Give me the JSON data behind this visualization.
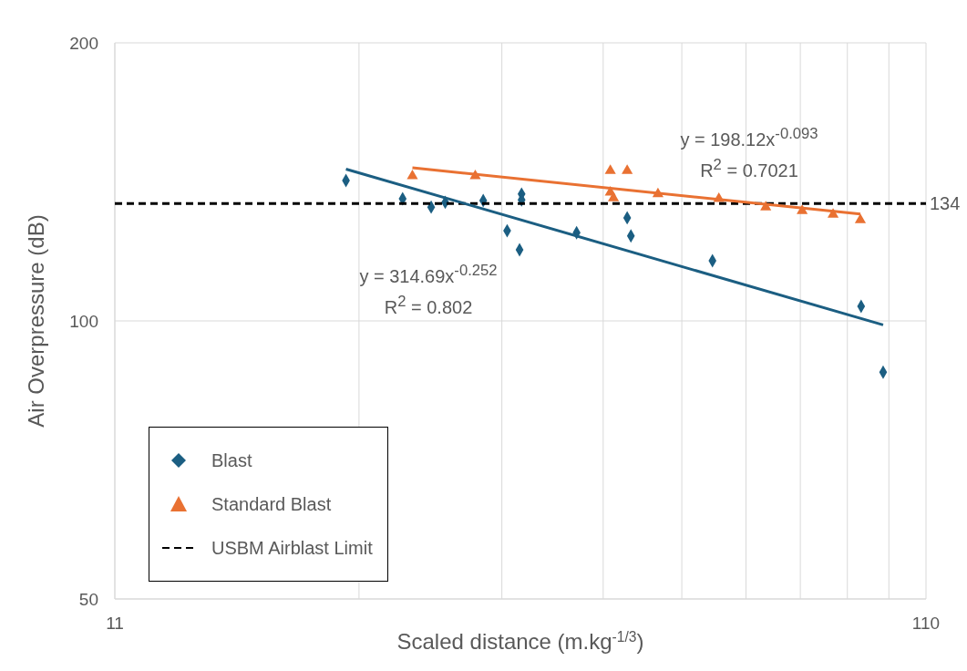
{
  "chart_data": {
    "type": "scatter",
    "xlabel": "Scaled distance (m.kg$^{-1/3}$)",
    "ylabel": "Air Overpressure (dB)",
    "log": "xy",
    "xlim": [
      11,
      110
    ],
    "ylim": [
      50,
      200
    ],
    "xticks": [
      11,
      {
        "value": 22,
        "label": null
      },
      {
        "value": 33,
        "label": null
      },
      {
        "value": 44,
        "label": null
      },
      {
        "value": 55,
        "label": null
      },
      {
        "value": 66,
        "label": null
      },
      {
        "value": 77,
        "label": null
      },
      {
        "value": 88,
        "label": null
      },
      {
        "value": 99,
        "label": null
      },
      110
    ],
    "yticks": [
      50,
      100,
      200
    ],
    "grid": true,
    "legend": "bottom left",
    "series": [
      {
        "name": "Blast",
        "type": "scatter",
        "marker": "diamond",
        "color": "#1b5e82",
        "x": [
          21.2,
          24.9,
          27.0,
          28.1,
          31.3,
          33.5,
          34.9,
          34.9,
          34.7,
          40.8,
          47.1,
          47.6,
          60.0,
          91.5,
          97.4
        ],
        "values": [
          141.9,
          135.6,
          132.8,
          134.4,
          135.0,
          125.2,
          137.2,
          135.2,
          119.4,
          124.6,
          129.3,
          123.6,
          116.2,
          103.7,
          88.0
        ]
      },
      {
        "name": "Standard Blast",
        "type": "scatter",
        "marker": "triangle",
        "color": "#e97132",
        "x": [
          25.6,
          30.6,
          44.9,
          47.1,
          44.9,
          45.3,
          51.4,
          61.1,
          69.8,
          77.4,
          84.5,
          91.3
        ],
        "values": [
          143.5,
          143.5,
          145.4,
          145.4,
          137.8,
          135.8,
          137.2,
          135.6,
          132.8,
          131.6,
          130.4,
          128.6
        ]
      },
      {
        "name": "USBM Airblast Limit",
        "type": "line",
        "marker": "none",
        "line_style": "dashed",
        "color": "#000000",
        "x": [
          11,
          110
        ],
        "values": [
          134,
          134
        ]
      },
      {
        "type": "line",
        "marker": "none",
        "line_style": "solid",
        "color": "#1b5e82",
        "x": [
          21.2,
          97.4
        ],
        "values": [
          146,
          99
        ]
      },
      {
        "type": "line",
        "marker": "none",
        "line_style": "solid",
        "color": "#e97132",
        "x": [
          25.6,
          91.3
        ],
        "values": [
          146.5,
          130.5
        ]
      }
    ],
    "annotations": [
      {
        "text": "134",
        "x": 110,
        "y": 134
      },
      "y = 314.69x$^{-0.252}$",
      "R$^{2}$ = 0.802",
      "y = 198.12x$^{-0.093}$",
      "R$^{2}$ = 0.7021"
    ]
  }
}
